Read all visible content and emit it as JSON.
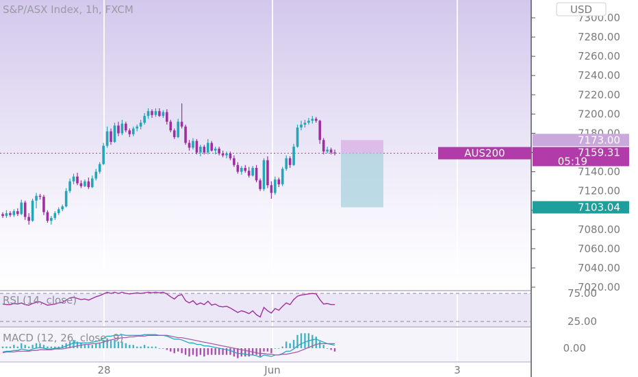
{
  "chart_data": {
    "type": "candlestick",
    "title": "S&P/ASX Index, 1h, FXCM",
    "currency": "USD",
    "symbol": "AUS200",
    "y_ticks": [
      "7300.00",
      "7280.00",
      "7260.00",
      "7240.00",
      "7220.00",
      "7200.00",
      "7180.00",
      "7160.00",
      "7140.00",
      "7120.00",
      "7100.00",
      "7080.00",
      "7060.00",
      "7040.00",
      "7020.00"
    ],
    "ylim": [
      7020,
      7305
    ],
    "x_ticks": [
      "28",
      "Jun",
      "3"
    ],
    "last_price": "7159.31",
    "countdown": "05:19",
    "price_tags": [
      {
        "label": "7173.00",
        "value": 7173.0,
        "color": "#c9a8db"
      },
      {
        "label": "7159.30",
        "value": 7159.3,
        "color": "#7c7c86"
      },
      {
        "label": "7103.04",
        "value": 7103.04,
        "color": "#1f9e9e"
      }
    ],
    "position_box": {
      "entry": 7159.3,
      "stop": 7173.0,
      "target": 7103.04
    },
    "candles": [
      [
        7096,
        7098,
        7092,
        7094
      ],
      [
        7094,
        7100,
        7092,
        7097
      ],
      [
        7097,
        7099,
        7093,
        7095
      ],
      [
        7095,
        7101,
        7093,
        7099
      ],
      [
        7099,
        7102,
        7094,
        7096
      ],
      [
        7096,
        7111,
        7095,
        7108
      ],
      [
        7108,
        7110,
        7090,
        7093
      ],
      [
        7093,
        7097,
        7085,
        7089
      ],
      [
        7089,
        7112,
        7088,
        7110
      ],
      [
        7110,
        7118,
        7102,
        7115
      ],
      [
        7115,
        7117,
        7111,
        7114
      ],
      [
        7114,
        7116,
        7095,
        7098
      ],
      [
        7098,
        7100,
        7087,
        7089
      ],
      [
        7089,
        7094,
        7085,
        7092
      ],
      [
        7092,
        7099,
        7090,
        7097
      ],
      [
        7097,
        7103,
        7095,
        7101
      ],
      [
        7101,
        7106,
        7099,
        7104
      ],
      [
        7104,
        7123,
        7103,
        7120
      ],
      [
        7120,
        7133,
        7118,
        7130
      ],
      [
        7130,
        7138,
        7127,
        7135
      ],
      [
        7135,
        7139,
        7126,
        7128
      ],
      [
        7128,
        7131,
        7123,
        7125
      ],
      [
        7125,
        7132,
        7124,
        7130
      ],
      [
        7130,
        7134,
        7122,
        7124
      ],
      [
        7124,
        7136,
        7123,
        7133
      ],
      [
        7133,
        7143,
        7131,
        7140
      ],
      [
        7140,
        7150,
        7138,
        7148
      ],
      [
        7148,
        7170,
        7147,
        7167
      ],
      [
        7167,
        7187,
        7165,
        7182
      ],
      [
        7182,
        7185,
        7168,
        7171
      ],
      [
        7171,
        7191,
        7170,
        7188
      ],
      [
        7188,
        7192,
        7177,
        7180
      ],
      [
        7180,
        7194,
        7178,
        7190
      ],
      [
        7190,
        7192,
        7181,
        7183
      ],
      [
        7183,
        7185,
        7176,
        7179
      ],
      [
        7179,
        7187,
        7177,
        7185
      ],
      [
        7185,
        7189,
        7182,
        7187
      ],
      [
        7187,
        7194,
        7184,
        7191
      ],
      [
        7191,
        7201,
        7189,
        7198
      ],
      [
        7198,
        7206,
        7195,
        7203
      ],
      [
        7203,
        7205,
        7196,
        7199
      ],
      [
        7199,
        7206,
        7197,
        7203
      ],
      [
        7203,
        7206,
        7197,
        7198
      ],
      [
        7198,
        7204,
        7196,
        7202
      ],
      [
        7202,
        7205,
        7189,
        7192
      ],
      [
        7192,
        7194,
        7181,
        7183
      ],
      [
        7183,
        7185,
        7174,
        7176
      ],
      [
        7176,
        7195,
        7175,
        7192
      ],
      [
        7192,
        7211,
        7185,
        7187
      ],
      [
        7187,
        7189,
        7168,
        7170
      ],
      [
        7170,
        7173,
        7162,
        7165
      ],
      [
        7165,
        7175,
        7163,
        7172
      ],
      [
        7172,
        7174,
        7158,
        7160
      ],
      [
        7160,
        7168,
        7156,
        7166
      ],
      [
        7166,
        7168,
        7158,
        7160
      ],
      [
        7160,
        7174,
        7158,
        7170
      ],
      [
        7170,
        7172,
        7161,
        7162
      ],
      [
        7162,
        7166,
        7158,
        7164
      ],
      [
        7164,
        7166,
        7157,
        7159
      ],
      [
        7159,
        7162,
        7155,
        7157
      ],
      [
        7157,
        7161,
        7154,
        7159
      ],
      [
        7159,
        7161,
        7152,
        7154
      ],
      [
        7154,
        7157,
        7145,
        7147
      ],
      [
        7147,
        7150,
        7138,
        7140
      ],
      [
        7140,
        7146,
        7137,
        7144
      ],
      [
        7144,
        7147,
        7139,
        7141
      ],
      [
        7141,
        7145,
        7134,
        7136
      ],
      [
        7136,
        7146,
        7135,
        7144
      ],
      [
        7144,
        7147,
        7129,
        7131
      ],
      [
        7131,
        7133,
        7120,
        7122
      ],
      [
        7122,
        7154,
        7120,
        7152
      ],
      [
        7152,
        7156,
        7123,
        7126
      ],
      [
        7126,
        7130,
        7112,
        7118
      ],
      [
        7118,
        7135,
        7116,
        7132
      ],
      [
        7132,
        7134,
        7124,
        7127
      ],
      [
        7127,
        7145,
        7125,
        7143
      ],
      [
        7143,
        7157,
        7141,
        7154
      ],
      [
        7154,
        7156,
        7144,
        7147
      ],
      [
        7147,
        7169,
        7146,
        7166
      ],
      [
        7166,
        7189,
        7165,
        7186
      ],
      [
        7186,
        7193,
        7183,
        7189
      ],
      [
        7189,
        7194,
        7186,
        7191
      ],
      [
        7191,
        7196,
        7189,
        7193
      ],
      [
        7193,
        7198,
        7190,
        7195
      ],
      [
        7195,
        7197,
        7191,
        7193
      ],
      [
        7193,
        7194,
        7169,
        7173
      ],
      [
        7173,
        7175,
        7158,
        7161
      ],
      [
        7161,
        7166,
        7159,
        7163
      ],
      [
        7163,
        7165,
        7158,
        7160
      ],
      [
        7160,
        7163,
        7157,
        7159.31
      ]
    ],
    "rsi": {
      "label": "RSI (14, close)",
      "y_ticks": [
        "75.00",
        "25.00"
      ],
      "values": [
        56,
        55,
        55,
        57,
        56,
        58,
        55,
        54,
        57,
        59,
        60,
        57,
        54,
        55,
        56,
        58,
        59,
        63,
        67,
        68,
        66,
        64,
        65,
        63,
        66,
        69,
        71,
        74,
        77,
        75,
        77,
        75,
        77,
        75,
        74,
        75,
        76,
        75,
        76,
        77,
        76,
        77,
        76,
        77,
        74,
        69,
        65,
        71,
        73,
        62,
        58,
        62,
        55,
        58,
        55,
        61,
        54,
        56,
        52,
        51,
        52,
        49,
        45,
        41,
        44,
        42,
        39,
        44,
        37,
        33,
        50,
        44,
        40,
        48,
        45,
        52,
        58,
        55,
        64,
        70,
        72,
        73,
        74,
        75,
        74,
        64,
        56,
        57,
        55,
        55
      ]
    },
    "macd": {
      "label": "MACD (12, 26, close, 9)",
      "zero_label": "0.00",
      "macd": [
        -5,
        -4,
        -4,
        -3,
        -3,
        -1,
        -2,
        -3,
        -1,
        0,
        1,
        0,
        -1,
        -1,
        0,
        0,
        1,
        3,
        5,
        7,
        7,
        7,
        7,
        7,
        8,
        9,
        10,
        13,
        16,
        16,
        17,
        17,
        18,
        17,
        17,
        17,
        17,
        17,
        18,
        18,
        18,
        18,
        17,
        17,
        16,
        14,
        12,
        12,
        11,
        9,
        7,
        7,
        5,
        5,
        3,
        3,
        2,
        1,
        0,
        -1,
        -2,
        -3,
        -5,
        -7,
        -7,
        -8,
        -9,
        -9,
        -10,
        -12,
        -9,
        -10,
        -11,
        -9,
        -9,
        -7,
        -4,
        -4,
        -1,
        3,
        6,
        8,
        10,
        11,
        12,
        10,
        8,
        6,
        5,
        4
      ],
      "signal": [
        -6,
        -5,
        -5,
        -5,
        -4,
        -4,
        -4,
        -4,
        -3,
        -3,
        -2,
        -2,
        -2,
        -2,
        -1,
        -1,
        -1,
        0,
        1,
        2,
        3,
        4,
        5,
        5,
        6,
        6,
        7,
        8,
        10,
        11,
        12,
        13,
        14,
        14,
        15,
        15,
        16,
        16,
        16,
        17,
        17,
        17,
        17,
        17,
        17,
        16,
        15,
        14,
        14,
        13,
        12,
        11,
        10,
        9,
        8,
        7,
        6,
        5,
        4,
        3,
        2,
        1,
        0,
        -1,
        -2,
        -3,
        -4,
        -5,
        -6,
        -7,
        -7,
        -8,
        -8,
        -9,
        -9,
        -8,
        -8,
        -7,
        -6,
        -5,
        -3,
        -1,
        1,
        3,
        5,
        6,
        6,
        6,
        6,
        6
      ]
    }
  }
}
